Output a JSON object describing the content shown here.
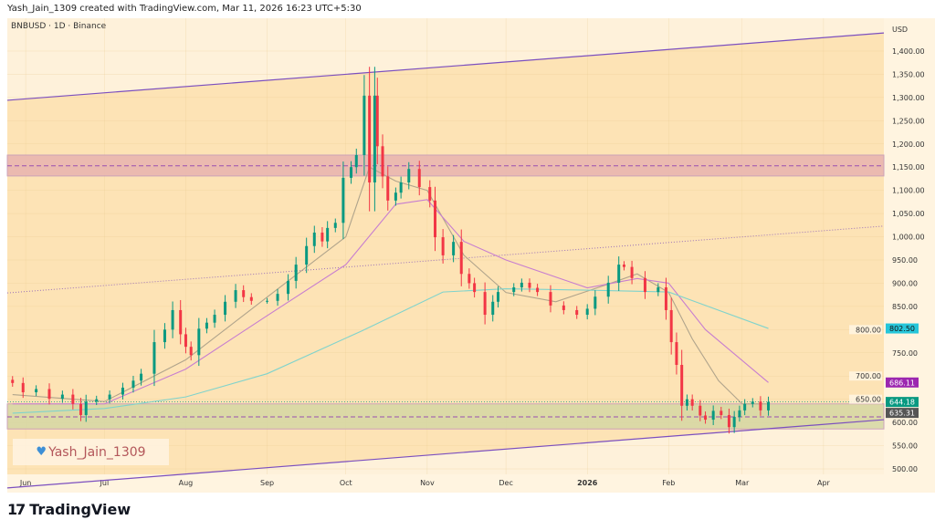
{
  "header": {
    "credit": "Yash_Jain_1309 created with TradingView.com, Mar 11, 2026 16:23 UTC+5:30",
    "symbol": "BNBUSD · 1D · Binance"
  },
  "watermark": {
    "text": "Yash_Jain_1309",
    "icon": "heart-icon"
  },
  "footer": {
    "logo_text": "TradingView",
    "logo_icon": "tradingview-logo-icon"
  },
  "colors": {
    "background": "#fde3b5",
    "outside_channel": "#fef1da",
    "up": "#089981",
    "down": "#f23645",
    "channel": "#7b4fbf",
    "resistance_zone": "#e8b4b0",
    "support_zone": "#d6d8a4",
    "ma_fast": "#b0a48c",
    "ma_mid": "#c77dd0",
    "ma_slow": "#7fd3cc"
  },
  "chart_data": {
    "type": "candlestick",
    "currency_label": "USD",
    "ylim": [
      480,
      1440
    ],
    "y_ticks": [
      500,
      550,
      600,
      650,
      700,
      750,
      800,
      850,
      900,
      950,
      1000,
      1050,
      1100,
      1150,
      1200,
      1250,
      1300,
      1350,
      1400
    ],
    "x_ticks": [
      {
        "date": "2025-06-01",
        "label": "Jun"
      },
      {
        "date": "2025-07-01",
        "label": "Jul"
      },
      {
        "date": "2025-08-01",
        "label": "Aug"
      },
      {
        "date": "2025-09-01",
        "label": "Sep"
      },
      {
        "date": "2025-10-01",
        "label": "Oct"
      },
      {
        "date": "2025-11-01",
        "label": "Nov"
      },
      {
        "date": "2025-12-01",
        "label": "Dec"
      },
      {
        "date": "2026-01-01",
        "label": "2026"
      },
      {
        "date": "2026-02-01",
        "label": "Feb"
      },
      {
        "date": "2026-03-01",
        "label": "Mar"
      },
      {
        "date": "2026-04-01",
        "label": "Apr"
      }
    ],
    "x_range": [
      "2025-05-25",
      "2026-04-24"
    ],
    "closes": [
      [
        "2025-05-27",
        685
      ],
      [
        "2025-05-31",
        665
      ],
      [
        "2025-06-05",
        672
      ],
      [
        "2025-06-10",
        651
      ],
      [
        "2025-06-15",
        660
      ],
      [
        "2025-06-19",
        640
      ],
      [
        "2025-06-22",
        616
      ],
      [
        "2025-06-24",
        645
      ],
      [
        "2025-06-28",
        650
      ],
      [
        "2025-07-03",
        660
      ],
      [
        "2025-07-08",
        675
      ],
      [
        "2025-07-12",
        690
      ],
      [
        "2025-07-15",
        705
      ],
      [
        "2025-07-20",
        773
      ],
      [
        "2025-07-24",
        800
      ],
      [
        "2025-07-27",
        842
      ],
      [
        "2025-07-30",
        790
      ],
      [
        "2025-08-01",
        763
      ],
      [
        "2025-08-03",
        745
      ],
      [
        "2025-08-06",
        802
      ],
      [
        "2025-08-09",
        815
      ],
      [
        "2025-08-12",
        832
      ],
      [
        "2025-08-16",
        860
      ],
      [
        "2025-08-20",
        885
      ],
      [
        "2025-08-23",
        870
      ],
      [
        "2025-08-26",
        862
      ],
      [
        "2025-09-01",
        862
      ],
      [
        "2025-09-05",
        877
      ],
      [
        "2025-09-09",
        905
      ],
      [
        "2025-09-12",
        940
      ],
      [
        "2025-09-16",
        980
      ],
      [
        "2025-09-19",
        1009
      ],
      [
        "2025-09-22",
        990
      ],
      [
        "2025-09-24",
        1019
      ],
      [
        "2025-09-27",
        1030
      ],
      [
        "2025-09-30",
        1127
      ],
      [
        "2025-10-03",
        1150
      ],
      [
        "2025-10-05",
        1176
      ],
      [
        "2025-10-08",
        1304
      ],
      [
        "2025-10-10",
        1117
      ],
      [
        "2025-10-12",
        1304
      ],
      [
        "2025-10-13",
        1195
      ],
      [
        "2025-10-15",
        1130
      ],
      [
        "2025-10-17",
        1078
      ],
      [
        "2025-10-20",
        1095
      ],
      [
        "2025-10-22",
        1117
      ],
      [
        "2025-10-25",
        1146
      ],
      [
        "2025-10-29",
        1107
      ],
      [
        "2025-11-02",
        1078
      ],
      [
        "2025-11-04",
        999
      ],
      [
        "2025-11-07",
        960
      ],
      [
        "2025-11-11",
        989
      ],
      [
        "2025-11-14",
        920
      ],
      [
        "2025-11-17",
        900
      ],
      [
        "2025-11-19",
        881
      ],
      [
        "2025-11-23",
        832
      ],
      [
        "2025-11-26",
        860
      ],
      [
        "2025-11-28",
        881
      ],
      [
        "2025-12-04",
        891
      ],
      [
        "2025-12-07",
        901
      ],
      [
        "2025-12-10",
        890
      ],
      [
        "2025-12-13",
        881
      ],
      [
        "2025-12-18",
        852
      ],
      [
        "2025-12-23",
        842
      ],
      [
        "2025-12-28",
        832
      ],
      [
        "2026-01-01",
        845
      ],
      [
        "2026-01-04",
        871
      ],
      [
        "2026-01-09",
        901
      ],
      [
        "2026-01-13",
        940
      ],
      [
        "2026-01-15",
        935
      ],
      [
        "2026-01-18",
        911
      ],
      [
        "2026-01-23",
        881
      ],
      [
        "2026-01-28",
        891
      ],
      [
        "2026-01-31",
        842
      ],
      [
        "2026-02-02",
        773
      ],
      [
        "2026-02-04",
        724
      ],
      [
        "2026-02-06",
        636
      ],
      [
        "2026-02-08",
        650
      ],
      [
        "2026-02-10",
        636
      ],
      [
        "2026-02-13",
        615
      ],
      [
        "2026-02-15",
        606
      ],
      [
        "2026-02-18",
        625
      ],
      [
        "2026-02-21",
        616
      ],
      [
        "2026-02-24",
        590
      ],
      [
        "2026-02-26",
        612
      ],
      [
        "2026-02-28",
        626
      ],
      [
        "2026-03-02",
        640
      ],
      [
        "2026-03-05",
        645
      ],
      [
        "2026-03-08",
        626
      ],
      [
        "2026-03-11",
        644.18
      ]
    ],
    "moving_averages": [
      {
        "color_key": "ma_fast",
        "points": [
          [
            "2025-05-27",
            660
          ],
          [
            "2025-07-01",
            645
          ],
          [
            "2025-08-01",
            735
          ],
          [
            "2025-09-01",
            870
          ],
          [
            "2025-10-01",
            1000
          ],
          [
            "2025-10-10",
            1150
          ],
          [
            "2025-10-20",
            1120
          ],
          [
            "2025-11-01",
            1100
          ],
          [
            "2025-11-15",
            960
          ],
          [
            "2025-12-01",
            880
          ],
          [
            "2025-12-20",
            860
          ],
          [
            "2026-01-10",
            900
          ],
          [
            "2026-01-20",
            920
          ],
          [
            "2026-02-01",
            880
          ],
          [
            "2026-02-10",
            780
          ],
          [
            "2026-02-20",
            690
          ],
          [
            "2026-03-01",
            640
          ],
          [
            "2026-03-11",
            640
          ]
        ]
      },
      {
        "color_key": "ma_mid",
        "points": [
          [
            "2025-05-27",
            640
          ],
          [
            "2025-07-01",
            640
          ],
          [
            "2025-08-01",
            715
          ],
          [
            "2025-09-01",
            830
          ],
          [
            "2025-10-01",
            940
          ],
          [
            "2025-10-20",
            1070
          ],
          [
            "2025-11-01",
            1080
          ],
          [
            "2025-11-15",
            990
          ],
          [
            "2025-12-01",
            950
          ],
          [
            "2026-01-01",
            890
          ],
          [
            "2026-01-20",
            910
          ],
          [
            "2026-02-01",
            900
          ],
          [
            "2026-02-15",
            800
          ],
          [
            "2026-03-11",
            686.11
          ]
        ]
      },
      {
        "color_key": "ma_slow",
        "points": [
          [
            "2025-05-27",
            620
          ],
          [
            "2025-07-01",
            630
          ],
          [
            "2025-08-01",
            655
          ],
          [
            "2025-09-01",
            705
          ],
          [
            "2025-10-07",
            797
          ],
          [
            "2025-11-07",
            881
          ],
          [
            "2025-12-01",
            888
          ],
          [
            "2026-01-01",
            885
          ],
          [
            "2026-02-01",
            881
          ],
          [
            "2026-03-11",
            802.5
          ]
        ]
      }
    ],
    "channel": {
      "upper": [
        [
          "2025-05-25",
          1294
        ],
        [
          "2026-04-24",
          1439
        ]
      ],
      "middle": [
        [
          "2025-05-25",
          879
        ],
        [
          "2026-04-24",
          1023
        ]
      ],
      "lower": [
        [
          "2025-05-25",
          459
        ],
        [
          "2026-04-24",
          606
        ]
      ]
    },
    "zones": [
      {
        "color_key": "resistance_zone",
        "from": 1131,
        "to": 1176,
        "mid": 1153
      },
      {
        "color_key": "support_zone",
        "from": 586,
        "to": 640,
        "mid": 612
      }
    ],
    "price_labels": [
      {
        "value": "802.50",
        "bg": "#26c6da",
        "fg": "#111"
      },
      {
        "value": "686.11",
        "bg": "#9c27b0",
        "fg": "#fff"
      },
      {
        "value": "644.18",
        "bg": "#089981",
        "fg": "#fff"
      },
      {
        "value": "635.31",
        "bg": "#555555",
        "fg": "#fff"
      }
    ]
  }
}
